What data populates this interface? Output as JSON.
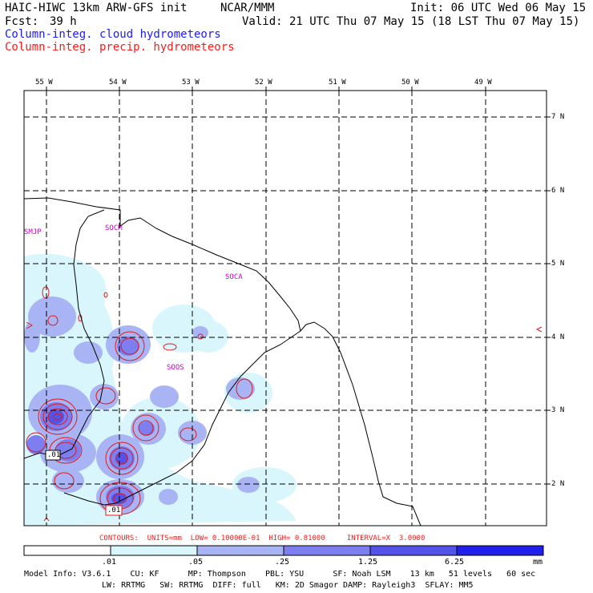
{
  "header": {
    "title_left": "HAIC-HIWC 13km ARW-GFS init",
    "org": "NCAR/MMM",
    "init": "Init: 06 UTC Wed 06 May 15",
    "fcst_label": "Fcst:",
    "fcst_value": "39 h",
    "valid": "Valid: 21 UTC Thu 07 May 15 (18 LST Thu 07 May 15)",
    "field1": "Column-integ. cloud hydrometeors",
    "field2": "Column-integ. precip. hydrometeors"
  },
  "map": {
    "lon_labels": [
      "55 W",
      "54 W",
      "53 W",
      "52 W",
      "51 W",
      "50 W",
      "49 W"
    ],
    "lat_labels": [
      "7 N",
      "6 N",
      "5 N",
      "4 N",
      "3 N",
      "2 N"
    ],
    "stations": [
      "SMJP",
      "SOCM",
      "SOCA",
      "SOOS"
    ],
    "contour_marks": [
      ".01",
      ".01"
    ]
  },
  "contour_info": {
    "units": "CONTOURS:  UNITS=mm  LOW= 0.10000E-01  HIGH= 0.81000     INTERVAL=X  3.0000"
  },
  "colorbar": {
    "labels": [
      ".01",
      ".05",
      ".25",
      "1.25",
      "6.25"
    ],
    "unit": "mm",
    "colors": [
      "#ffffff",
      "#d8f6fb",
      "#a9b4f4",
      "#7d7ef0",
      "#5353ea",
      "#2020ec"
    ]
  },
  "footer": {
    "line1": "Model Info: V3.6.1    CU: KF      MP: Thompson    PBL: YSU      SF: Noah LSM    13 km   51 levels   60 sec",
    "line2": "LW: RRTMG   SW: RRTMG  DIFF: full   KM: 2D Smagor DAMP: Rayleigh3  SFLAY: MM5"
  }
}
